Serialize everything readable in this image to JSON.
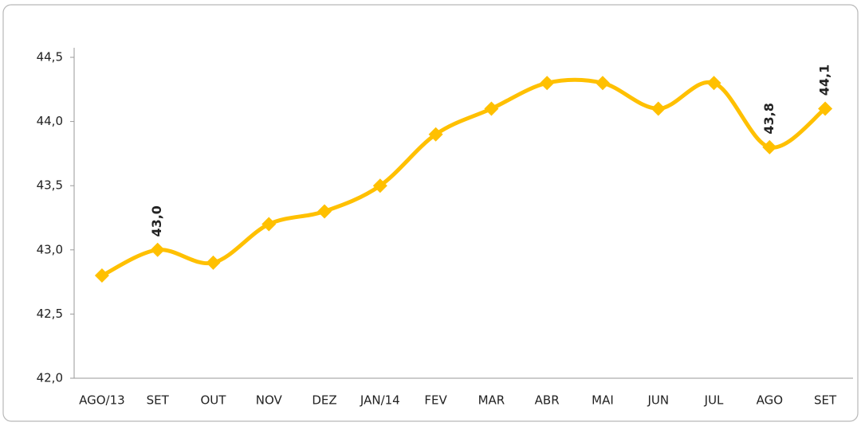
{
  "chart_data": {
    "type": "line",
    "categories": [
      "AGO/13",
      "SET",
      "OUT",
      "NOV",
      "DEZ",
      "JAN/14",
      "FEV",
      "MAR",
      "ABR",
      "MAI",
      "JUN",
      "JUL",
      "AGO",
      "SET"
    ],
    "values": [
      42.8,
      43.0,
      42.9,
      43.2,
      43.3,
      43.5,
      43.9,
      44.1,
      44.3,
      44.3,
      44.1,
      44.3,
      43.8,
      44.1
    ],
    "value_labels": [
      null,
      "43,0",
      null,
      null,
      null,
      null,
      null,
      null,
      null,
      null,
      null,
      null,
      "43,8",
      "44,1"
    ],
    "color": "#FFC000",
    "ylim": [
      42.0,
      44.5
    ],
    "yticks": [
      {
        "value": 42.0,
        "label": "42,0"
      },
      {
        "value": 42.5,
        "label": "42,5"
      },
      {
        "value": 43.0,
        "label": "43,0"
      },
      {
        "value": 43.5,
        "label": "43,5"
      },
      {
        "value": 44.0,
        "label": "44,0"
      },
      {
        "value": 44.5,
        "label": "44,5"
      }
    ],
    "grid": false
  }
}
